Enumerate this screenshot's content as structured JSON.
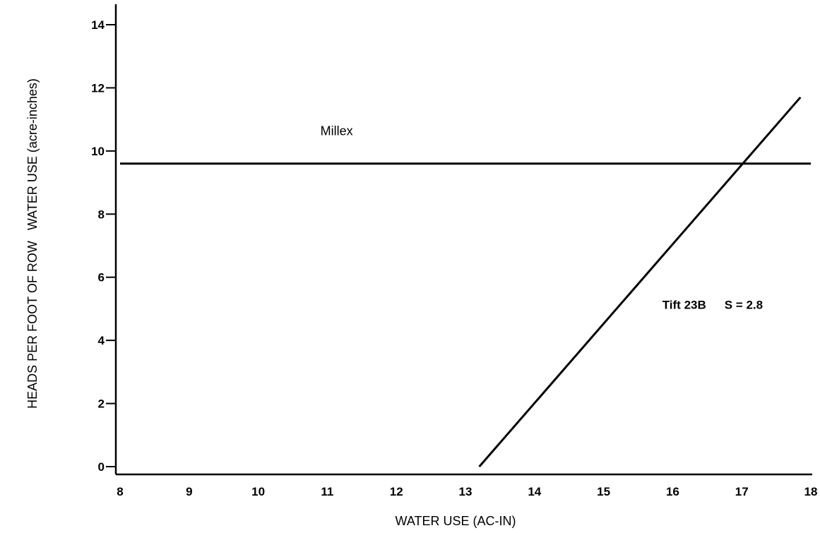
{
  "chart_data": {
    "type": "line",
    "xlabel": "WATER USE (AC-IN)",
    "ylabel": "HEADS PER FOOT OF ROW   WATER USE (acre-inches)",
    "xlim": [
      8,
      18
    ],
    "ylim": [
      0,
      14
    ],
    "x_ticks": [
      "8",
      "9",
      "10",
      "11",
      "12",
      "13",
      "14",
      "15",
      "16",
      "17",
      "18"
    ],
    "y_ticks": [
      "0",
      "2",
      "4",
      "6",
      "8",
      "10",
      "12",
      "14"
    ],
    "grid": false,
    "series": [
      {
        "name": "Millex",
        "x": [
          8,
          18
        ],
        "y": [
          9.6,
          9.6
        ]
      },
      {
        "name": "Tift 23B",
        "x": [
          13.2,
          17.85
        ],
        "y": [
          0,
          11.7
        ]
      }
    ],
    "annotations": [
      {
        "text": "Millex",
        "x": 10.9,
        "y": 10.5
      },
      {
        "text": "Tift 23B",
        "x": 15.85,
        "y": 5
      },
      {
        "text": "S = 2.8",
        "x": 16.75,
        "y": 5
      }
    ]
  }
}
